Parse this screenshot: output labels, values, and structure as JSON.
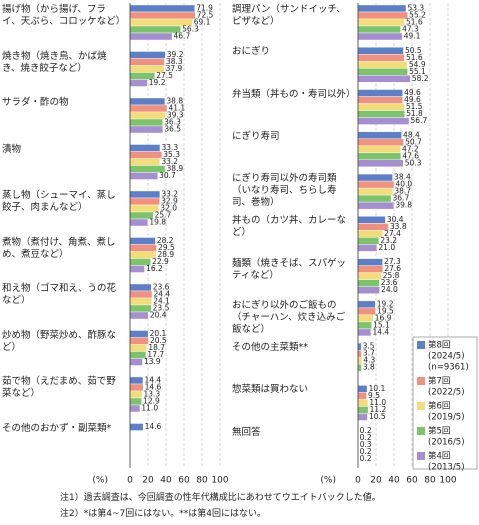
{
  "chart_data": [
    {
      "type": "hbar",
      "unit_label": "(%)",
      "xlim": [
        0,
        100
      ],
      "xticks": [
        0,
        20,
        40,
        60,
        80,
        100
      ],
      "grid": true,
      "categories": [
        "揚げ物（から揚げ、フライ、天ぷら、コロッケなど）",
        "焼き物（焼き鳥、かば焼き、焼き餃子など）",
        "サラダ・酢の物",
        "漬物",
        "蒸し物（シューマイ、蒸し餃子、肉まんなど）",
        "煮物（煮付け、角煮、煮しめ、煮豆など）",
        "和え物（ゴマ和え、うの花など）",
        "炒め物（野菜炒め、酢豚など）",
        "茹で物（えだまめ、茹で野菜など）",
        "その他のおかず・副菜類*"
      ],
      "series": [
        {
          "values": [
            71.9,
            39.2,
            38.8,
            33.3,
            33.2,
            28.2,
            23.6,
            20.1,
            14.4,
            14.6
          ]
        },
        {
          "values": [
            72.5,
            38.3,
            41.1,
            35.3,
            32.9,
            29.5,
            24.4,
            20.5,
            14.6,
            null
          ]
        },
        {
          "values": [
            69.1,
            37.9,
            39.3,
            33.2,
            32.0,
            28.9,
            24.1,
            18.7,
            13.3,
            null
          ],
          "value_labels": [
            "69.1",
            "37.9",
            "39.3",
            "33.2",
            "32.0",
            "28.9",
            "24.1",
            "18.7",
            "13.3",
            null
          ]
        },
        {
          "values": [
            56.3,
            27.5,
            36.3,
            38.9,
            25.7,
            22.9,
            23.5,
            17.7,
            12.9,
            null
          ]
        },
        {
          "values": [
            46.7,
            19.2,
            36.5,
            30.7,
            19.8,
            16.2,
            20.4,
            13.9,
            11.0,
            null
          ],
          "value_labels": [
            "46.7",
            "19.2",
            "36.5",
            "30.7",
            "19.8",
            "16.2",
            "20.4",
            "13.9",
            "11.0",
            null
          ]
        }
      ]
    },
    {
      "type": "hbar",
      "unit_label": "(%)",
      "xlim": [
        0,
        100
      ],
      "xticks": [
        0,
        20,
        40,
        60,
        80,
        100
      ],
      "grid": true,
      "categories": [
        "調理パン（サンドイッチ、ピザなど）",
        "おにぎり",
        "弁当類（丼もの・寿司以外）",
        "にぎり寿司",
        "にぎり寿司以外の寿司類（いなり寿司、ちらし寿司、巻物）",
        "丼もの（カツ丼、カレーなど）",
        "麺類（焼きそば、スパゲッティなど）",
        "おにぎり以外のご飯もの（チャーハン、炊き込みご飯など）",
        "その他の主菜類**",
        "惣菜類は買わない",
        "無回答"
      ],
      "series": [
        {
          "values": [
            53.3,
            50.5,
            49.6,
            48.4,
            38.4,
            30.4,
            27.3,
            19.2,
            3.5,
            10.1,
            0.2
          ]
        },
        {
          "values": [
            55.2,
            51.6,
            49.6,
            50.7,
            40.0,
            33.8,
            27.6,
            19.5,
            3.7,
            9.5,
            0.2
          ],
          "value_labels": [
            "55.2",
            "51.6",
            "49.6",
            "50.7",
            "40.0",
            "33.8",
            "27.6",
            "19.5",
            "3.7",
            "9.5",
            "0.2"
          ]
        },
        {
          "values": [
            51.6,
            54.9,
            51.5,
            47.2,
            38.7,
            27.4,
            25.8,
            16.9,
            4.3,
            11.0,
            0.3
          ],
          "value_labels": [
            "51.6",
            "54.9",
            "51.5",
            "47.2",
            "38.7",
            "27.4",
            "25.8",
            "16.9",
            "4.3",
            "11.0",
            "0.3"
          ]
        },
        {
          "values": [
            47.3,
            55.1,
            51.8,
            47.6,
            36.7,
            23.2,
            23.6,
            15.1,
            3.8,
            11.2,
            0.2
          ]
        },
        {
          "values": [
            49.1,
            58.2,
            56.7,
            50.3,
            39.8,
            21.0,
            24.0,
            14.4,
            null,
            10.5,
            0.2
          ],
          "value_labels": [
            "49.1",
            "58.2",
            "56.7",
            "50.3",
            "39.8",
            "21.0",
            "24.0",
            "14.4",
            null,
            "10.5",
            "0.2"
          ]
        }
      ]
    }
  ],
  "legend": {
    "position": "lower right",
    "items": [
      {
        "name": "第8回",
        "period": "(2024/5)",
        "n": "(n=9361)",
        "color": "#5b7fc8"
      },
      {
        "name": "第7回",
        "period": "(2022/5)",
        "color": "#f0907e"
      },
      {
        "name": "第6回",
        "period": "(2019/5)",
        "color": "#f3dc7a"
      },
      {
        "name": "第5回",
        "period": "(2016/5)",
        "color": "#7cc46c"
      },
      {
        "name": "第4回",
        "period": "(2013/5)",
        "color": "#a58fd0"
      }
    ]
  },
  "notes": [
    "注1）過去調査は、今回調査の性年代構成比にあわせてウエイトバックした値。",
    "注2）*は第4~7回にはない。**は第4回にはない。"
  ]
}
